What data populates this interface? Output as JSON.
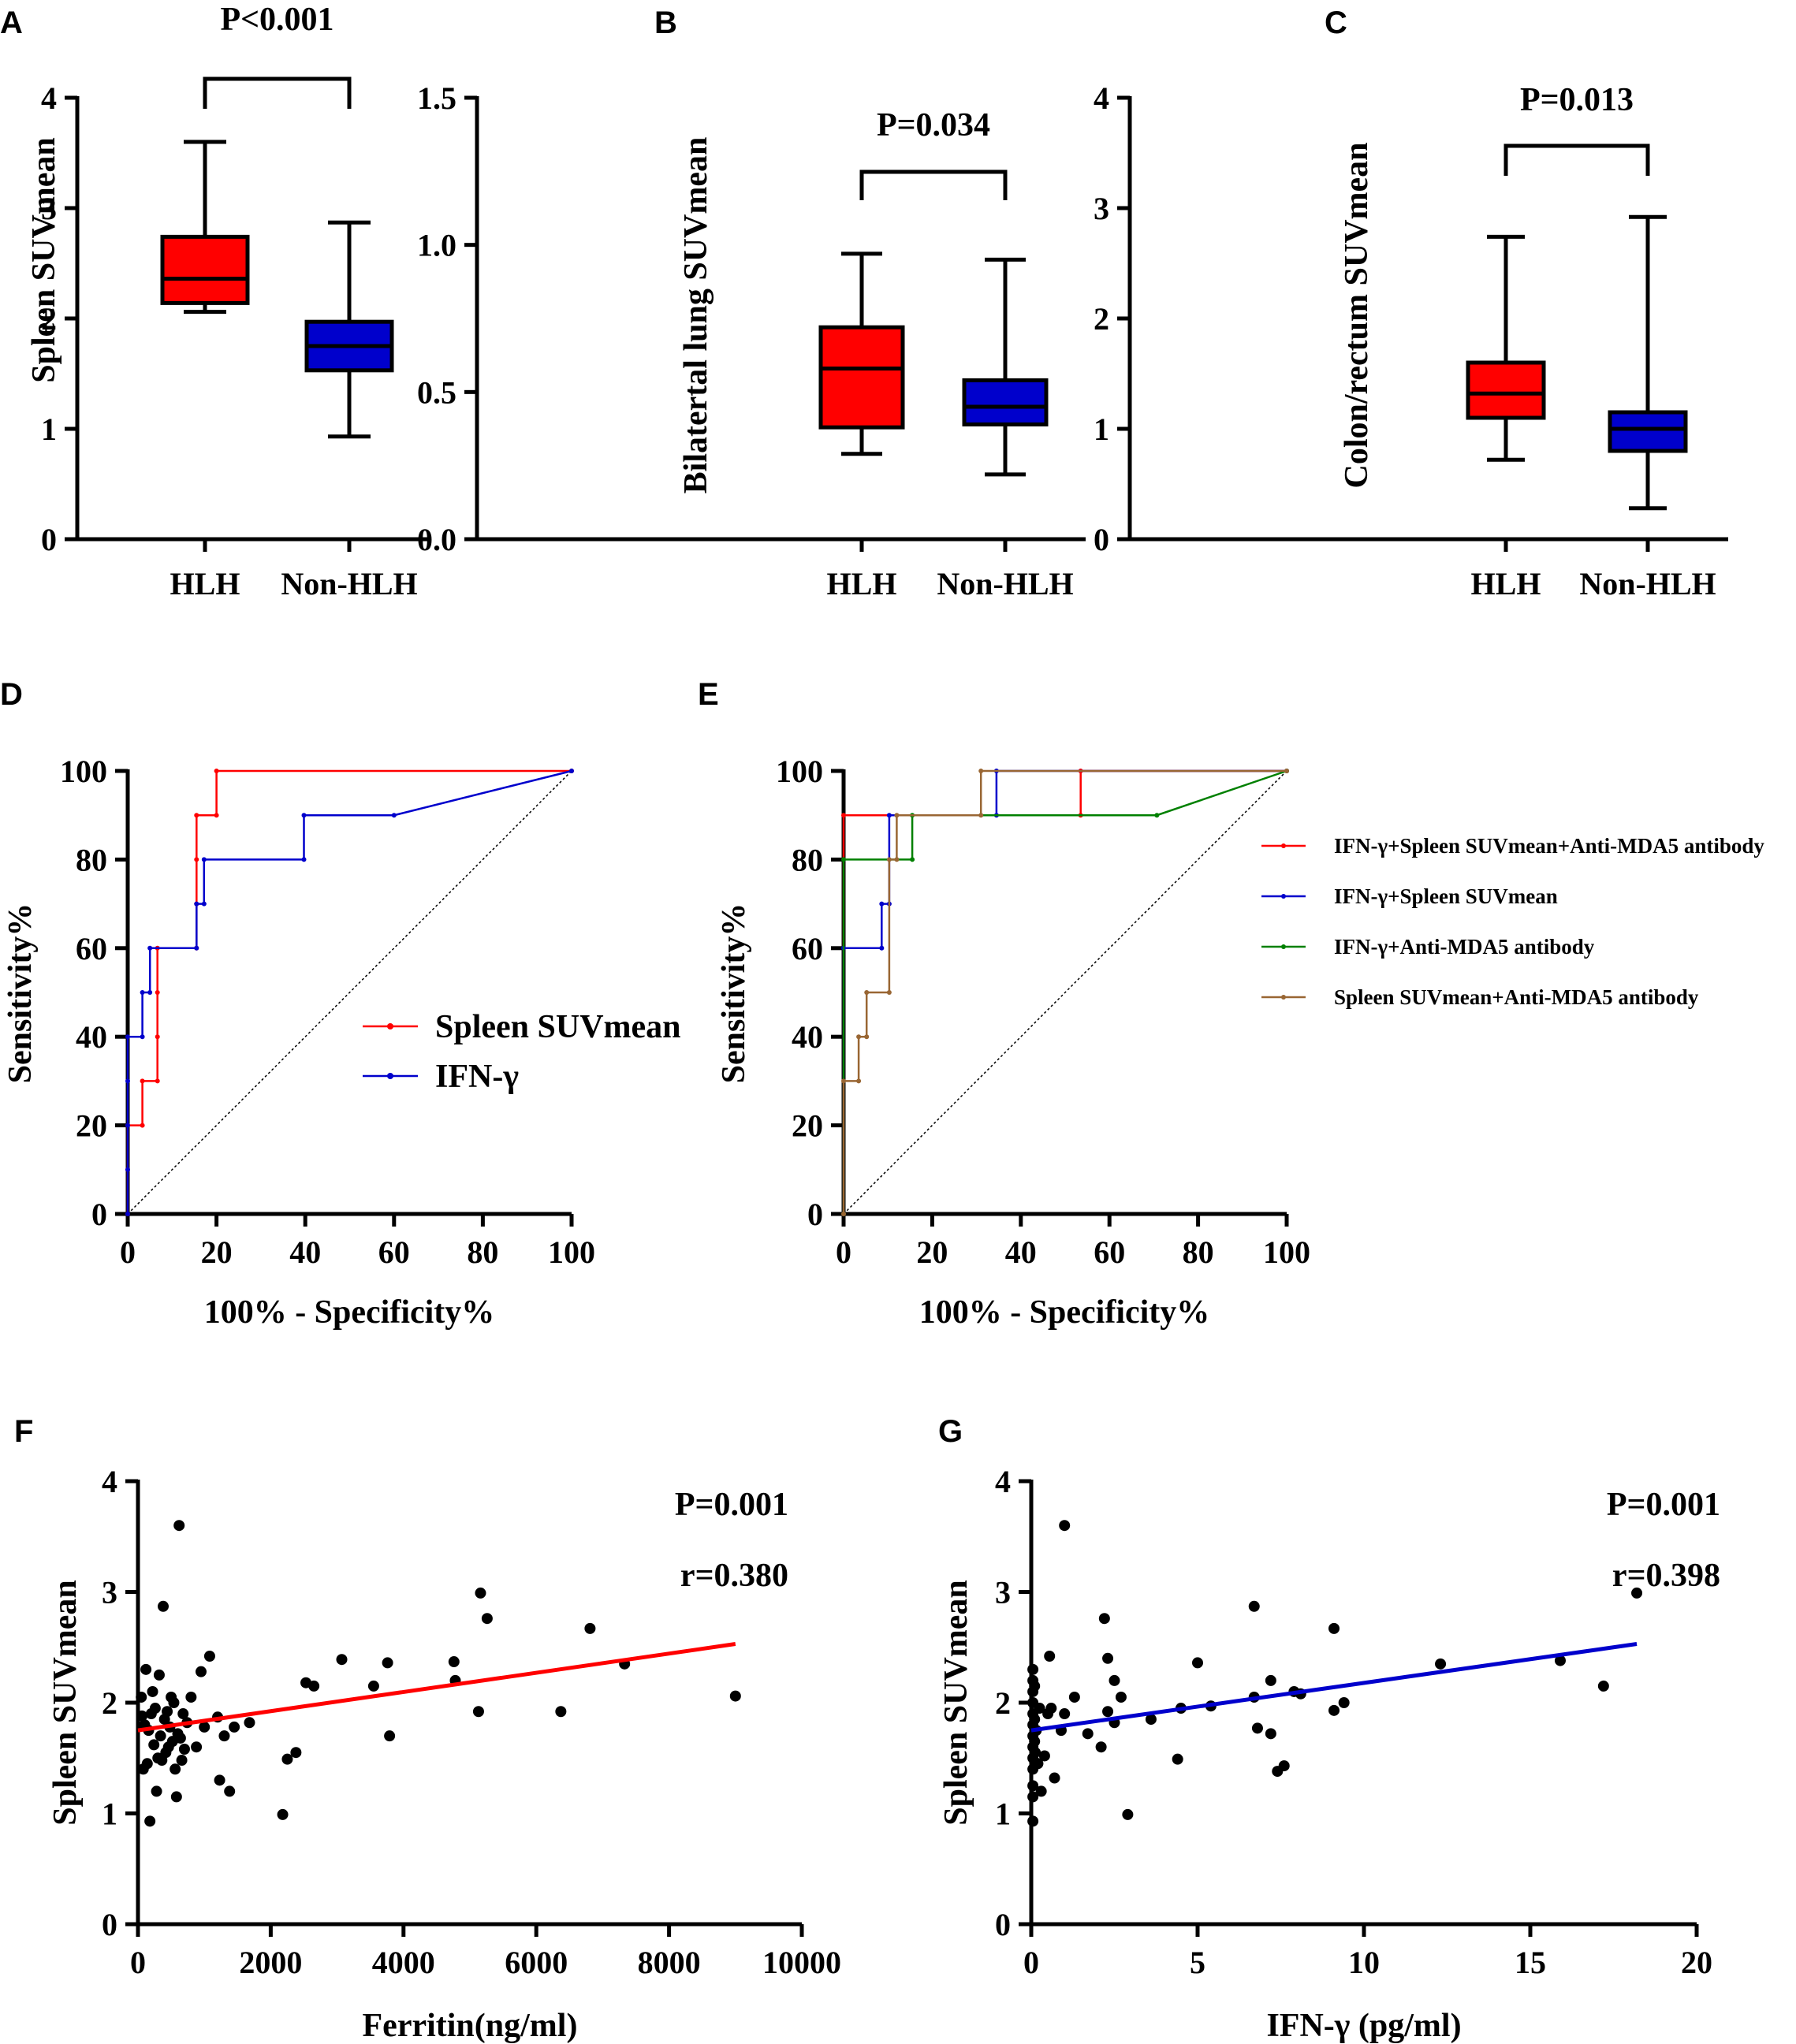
{
  "chart_data": [
    {
      "panel": "A",
      "type": "box",
      "ylabel": "Spleen SUVmean",
      "ylim": [
        0,
        4
      ],
      "yticks": [
        "0",
        "1",
        "2",
        "3",
        "4"
      ],
      "categories": [
        "HLH",
        "Non-HLH"
      ],
      "boxes": [
        {
          "group": "HLH",
          "min": 2.06,
          "q1": 2.14,
          "median": 2.36,
          "q3": 2.74,
          "max": 3.6,
          "color": "#ff0000"
        },
        {
          "group": "Non-HLH",
          "min": 0.93,
          "q1": 1.53,
          "median": 1.75,
          "q3": 1.97,
          "max": 2.87,
          "color": "#0000cc"
        }
      ],
      "pvalue": "P<0.001"
    },
    {
      "panel": "B",
      "type": "box",
      "ylabel": "Bilatertal lung SUVmean",
      "ylim": [
        0,
        1.5
      ],
      "yticks": [
        "0.0",
        "0.5",
        "1.0",
        "1.5"
      ],
      "categories": [
        "HLH",
        "Non-HLH"
      ],
      "boxes": [
        {
          "group": "HLH",
          "min": 0.29,
          "q1": 0.38,
          "median": 0.58,
          "q3": 0.72,
          "max": 0.97,
          "color": "#ff0000"
        },
        {
          "group": "Non-HLH",
          "min": 0.22,
          "q1": 0.39,
          "median": 0.45,
          "q3": 0.54,
          "max": 0.95,
          "color": "#0000cc"
        }
      ],
      "pvalue": "P=0.034"
    },
    {
      "panel": "C",
      "type": "box",
      "ylabel": "Colon/rectum SUVmean",
      "ylim": [
        0,
        4
      ],
      "yticks": [
        "0",
        "1",
        "2",
        "3",
        "4"
      ],
      "categories": [
        "HLH",
        "Non-HLH"
      ],
      "boxes": [
        {
          "group": "HLH",
          "min": 0.72,
          "q1": 1.1,
          "median": 1.32,
          "q3": 1.6,
          "max": 2.74,
          "color": "#ff0000"
        },
        {
          "group": "Non-HLH",
          "min": 0.28,
          "q1": 0.8,
          "median": 1.0,
          "q3": 1.15,
          "max": 2.92,
          "color": "#0000cc"
        }
      ],
      "pvalue": "P=0.013"
    },
    {
      "panel": "D",
      "type": "line",
      "xlabel": "100% - Specificity%",
      "ylabel": "Sensitivity%",
      "xlim": [
        0,
        100
      ],
      "ylim": [
        0,
        100
      ],
      "xticks": [
        "0",
        "20",
        "40",
        "60",
        "80",
        "100"
      ],
      "yticks": [
        "0",
        "20",
        "40",
        "60",
        "80",
        "100"
      ],
      "series": [
        {
          "name": "Spleen SUVmean",
          "color": "#ff0000",
          "points": [
            [
              0,
              0
            ],
            [
              0,
              10
            ],
            [
              0,
              20
            ],
            [
              3.3,
              20
            ],
            [
              3.3,
              30
            ],
            [
              6.7,
              30
            ],
            [
              6.7,
              40
            ],
            [
              6.7,
              50
            ],
            [
              6.7,
              60
            ],
            [
              15.5,
              60
            ],
            [
              15.5,
              70
            ],
            [
              15.5,
              80
            ],
            [
              15.5,
              90
            ],
            [
              20,
              90
            ],
            [
              20,
              100
            ],
            [
              100,
              100
            ]
          ]
        },
        {
          "name": "IFN-γ",
          "color": "#0000cc",
          "points": [
            [
              0,
              0
            ],
            [
              0,
              10
            ],
            [
              0,
              20
            ],
            [
              0,
              30
            ],
            [
              0,
              40
            ],
            [
              3.3,
              40
            ],
            [
              3.3,
              50
            ],
            [
              5,
              50
            ],
            [
              5,
              60
            ],
            [
              15.5,
              60
            ],
            [
              15.5,
              70
            ],
            [
              17.2,
              70
            ],
            [
              17.2,
              80
            ],
            [
              39.7,
              80
            ],
            [
              39.7,
              90
            ],
            [
              60,
              90
            ],
            [
              100,
              100
            ]
          ]
        }
      ]
    },
    {
      "panel": "E",
      "type": "line",
      "xlabel": "100% - Specificity%",
      "ylabel": "Sensitivity%",
      "xlim": [
        0,
        100
      ],
      "ylim": [
        0,
        100
      ],
      "xticks": [
        "0",
        "20",
        "40",
        "60",
        "80",
        "100"
      ],
      "yticks": [
        "0",
        "20",
        "40",
        "60",
        "80",
        "100"
      ],
      "series": [
        {
          "name": "IFN-γ+Spleen SUVmean+Anti-MDA5 antibody",
          "color": "#ff0000",
          "points": [
            [
              0,
              0
            ],
            [
              0,
              90
            ],
            [
              53.5,
              90
            ],
            [
              53.5,
              100
            ],
            [
              100,
              100
            ]
          ]
        },
        {
          "name": "IFN-γ+Spleen SUVmean",
          "color": "#0000cc",
          "points": [
            [
              0,
              0
            ],
            [
              0,
              60
            ],
            [
              8.6,
              60
            ],
            [
              8.6,
              70
            ],
            [
              10.3,
              70
            ],
            [
              10.3,
              90
            ],
            [
              34.5,
              90
            ],
            [
              34.5,
              100
            ],
            [
              100,
              100
            ]
          ]
        },
        {
          "name": "IFN-γ+Anti-MDA5 antibody",
          "color": "#008000",
          "points": [
            [
              0,
              0
            ],
            [
              0,
              80
            ],
            [
              15.5,
              80
            ],
            [
              15.5,
              90
            ],
            [
              70.7,
              90
            ],
            [
              100,
              100
            ]
          ]
        },
        {
          "name": "Spleen SUVmean+Anti-MDA5 antibody",
          "color": "#996633",
          "points": [
            [
              0,
              0
            ],
            [
              0,
              30
            ],
            [
              3.4,
              30
            ],
            [
              3.4,
              40
            ],
            [
              5.2,
              40
            ],
            [
              5.2,
              50
            ],
            [
              10.3,
              50
            ],
            [
              10.3,
              80
            ],
            [
              12,
              80
            ],
            [
              12,
              90
            ],
            [
              31,
              90
            ],
            [
              31,
              100
            ],
            [
              100,
              100
            ]
          ]
        }
      ]
    },
    {
      "panel": "F",
      "type": "scatter",
      "xlabel": "Ferritin(ng/ml)",
      "ylabel": "Spleen SUVmean",
      "xlim": [
        0,
        10000
      ],
      "ylim": [
        0,
        4
      ],
      "xticks": [
        "0",
        "2000",
        "4000",
        "6000",
        "8000",
        "10000"
      ],
      "yticks": [
        "0",
        "1",
        "2",
        "3",
        "4"
      ],
      "points": [
        [
          50,
          2.05
        ],
        [
          60,
          1.88
        ],
        [
          80,
          1.4
        ],
        [
          100,
          1.8
        ],
        [
          120,
          2.3
        ],
        [
          140,
          1.45
        ],
        [
          160,
          1.75
        ],
        [
          180,
          0.93
        ],
        [
          200,
          1.9
        ],
        [
          220,
          2.1
        ],
        [
          240,
          1.62
        ],
        [
          260,
          1.95
        ],
        [
          280,
          1.2
        ],
        [
          300,
          1.5
        ],
        [
          320,
          2.25
        ],
        [
          340,
          1.7
        ],
        [
          360,
          1.48
        ],
        [
          380,
          2.87
        ],
        [
          400,
          1.85
        ],
        [
          420,
          1.55
        ],
        [
          440,
          1.92
        ],
        [
          460,
          1.6
        ],
        [
          480,
          1.78
        ],
        [
          500,
          2.05
        ],
        [
          520,
          1.65
        ],
        [
          540,
          2.0
        ],
        [
          560,
          1.4
        ],
        [
          580,
          1.15
        ],
        [
          600,
          1.72
        ],
        [
          620,
          3.6
        ],
        [
          640,
          1.68
        ],
        [
          660,
          1.48
        ],
        [
          680,
          1.9
        ],
        [
          700,
          1.58
        ],
        [
          740,
          1.82
        ],
        [
          800,
          2.05
        ],
        [
          880,
          1.6
        ],
        [
          950,
          2.28
        ],
        [
          1000,
          1.78
        ],
        [
          1080,
          2.42
        ],
        [
          1200,
          1.87
        ],
        [
          1230,
          1.3
        ],
        [
          1300,
          1.7
        ],
        [
          1380,
          1.2
        ],
        [
          1450,
          1.78
        ],
        [
          1680,
          1.82
        ],
        [
          2180,
          0.99
        ],
        [
          2250,
          1.49
        ],
        [
          2380,
          1.55
        ],
        [
          2530,
          2.18
        ],
        [
          2650,
          2.15
        ],
        [
          3070,
          2.39
        ],
        [
          3550,
          2.15
        ],
        [
          3760,
          2.36
        ],
        [
          3790,
          1.7
        ],
        [
          4760,
          2.37
        ],
        [
          4780,
          2.2
        ],
        [
          5130,
          1.92
        ],
        [
          5160,
          2.99
        ],
        [
          5260,
          2.76
        ],
        [
          6370,
          1.92
        ],
        [
          6810,
          2.67
        ],
        [
          7330,
          2.35
        ],
        [
          9000,
          2.06
        ]
      ],
      "fit": {
        "x": [
          0,
          9000
        ],
        "y": [
          1.75,
          2.53
        ],
        "color": "#ff0000"
      },
      "annotations": [
        "P=0.001",
        "r=0.380"
      ]
    },
    {
      "panel": "G",
      "type": "scatter",
      "xlabel": "IFN-γ (pg/ml)",
      "ylabel": "Spleen SUVmean",
      "xlim": [
        0,
        20
      ],
      "ylim": [
        0,
        4
      ],
      "xticks": [
        "0",
        "5",
        "10",
        "15",
        "20"
      ],
      "yticks": [
        "0",
        "1",
        "2",
        "3",
        "4"
      ],
      "points": [
        [
          0.05,
          2.3
        ],
        [
          0.05,
          2.2
        ],
        [
          0.05,
          2.1
        ],
        [
          0.05,
          2.0
        ],
        [
          0.05,
          1.9
        ],
        [
          0.05,
          1.8
        ],
        [
          0.05,
          1.7
        ],
        [
          0.05,
          1.6
        ],
        [
          0.05,
          1.5
        ],
        [
          0.05,
          1.4
        ],
        [
          0.05,
          1.25
        ],
        [
          0.05,
          1.15
        ],
        [
          0.05,
          0.93
        ],
        [
          0.1,
          2.15
        ],
        [
          0.1,
          1.85
        ],
        [
          0.1,
          1.65
        ],
        [
          0.12,
          1.55
        ],
        [
          0.15,
          1.75
        ],
        [
          0.2,
          1.45
        ],
        [
          0.25,
          1.95
        ],
        [
          0.3,
          1.2
        ],
        [
          0.4,
          1.52
        ],
        [
          0.5,
          1.9
        ],
        [
          0.55,
          2.42
        ],
        [
          0.6,
          1.95
        ],
        [
          0.7,
          1.32
        ],
        [
          0.9,
          1.75
        ],
        [
          1.0,
          3.6
        ],
        [
          1.0,
          1.9
        ],
        [
          1.3,
          2.05
        ],
        [
          1.7,
          1.72
        ],
        [
          2.1,
          1.6
        ],
        [
          2.2,
          2.76
        ],
        [
          2.3,
          2.4
        ],
        [
          2.3,
          1.92
        ],
        [
          2.5,
          2.2
        ],
        [
          2.5,
          1.82
        ],
        [
          2.7,
          2.05
        ],
        [
          2.9,
          0.99
        ],
        [
          3.6,
          1.85
        ],
        [
          4.4,
          1.49
        ],
        [
          4.5,
          1.95
        ],
        [
          5.0,
          2.36
        ],
        [
          5.4,
          1.97
        ],
        [
          6.7,
          2.87
        ],
        [
          6.7,
          2.05
        ],
        [
          6.8,
          1.77
        ],
        [
          7.2,
          2.2
        ],
        [
          7.2,
          1.72
        ],
        [
          7.4,
          1.38
        ],
        [
          7.6,
          1.43
        ],
        [
          7.9,
          2.1
        ],
        [
          8.1,
          2.08
        ],
        [
          9.1,
          2.67
        ],
        [
          9.1,
          1.93
        ],
        [
          9.4,
          2.0
        ],
        [
          12.3,
          2.35
        ],
        [
          15.9,
          2.38
        ],
        [
          17.2,
          2.15
        ],
        [
          18.2,
          2.99
        ]
      ],
      "fit": {
        "x": [
          0,
          18.2
        ],
        "y": [
          1.75,
          2.53
        ],
        "color": "#0000cc"
      },
      "annotations": [
        "P=0.001",
        "r=0.398"
      ]
    }
  ]
}
